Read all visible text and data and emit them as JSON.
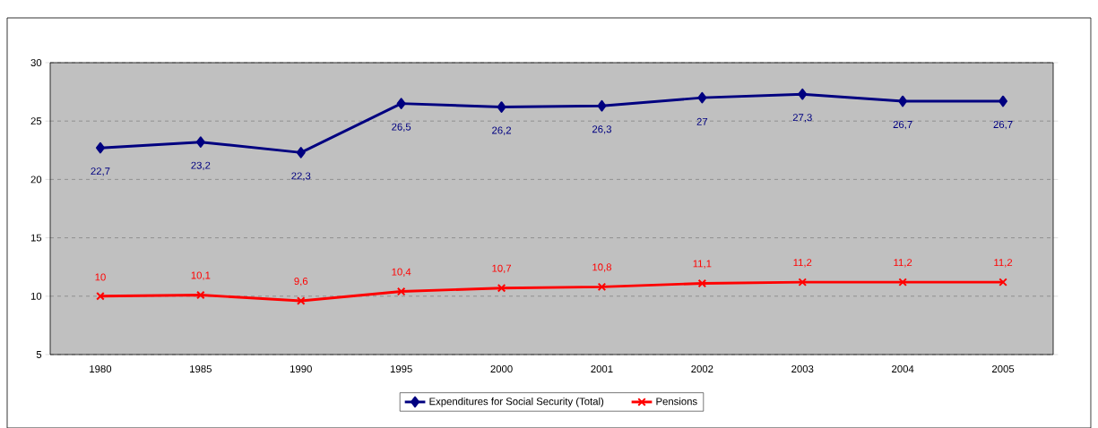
{
  "chart_data": {
    "type": "line",
    "categories": [
      "1980",
      "1985",
      "1990",
      "1995",
      "2000",
      "2001",
      "2002",
      "2003",
      "2004",
      "2005"
    ],
    "series": [
      {
        "name": "Expenditures for Social Security (Total)",
        "color": "#000080",
        "marker": "diamond",
        "values": [
          22.7,
          23.2,
          22.3,
          26.5,
          26.2,
          26.3,
          27,
          27.3,
          26.7,
          26.7
        ],
        "value_labels": [
          "22,7",
          "23,2",
          "22,3",
          "26,5",
          "26,2",
          "26,3",
          "27",
          "27,3",
          "26,7",
          "26,7"
        ]
      },
      {
        "name": "Pensions",
        "color": "#ff0000",
        "marker": "cross",
        "values": [
          10,
          10.1,
          9.6,
          10.4,
          10.7,
          10.8,
          11.1,
          11.2,
          11.2,
          11.2
        ],
        "value_labels": [
          "10",
          "10,1",
          "9,6",
          "10,4",
          "10,7",
          "10,8",
          "11,1",
          "11,2",
          "11,2",
          "11,2"
        ]
      }
    ],
    "ylim": [
      5,
      30
    ],
    "yticks": [
      5,
      10,
      15,
      20,
      25,
      30
    ],
    "grid": "y",
    "legend": "bottom",
    "line_style": "solid"
  }
}
